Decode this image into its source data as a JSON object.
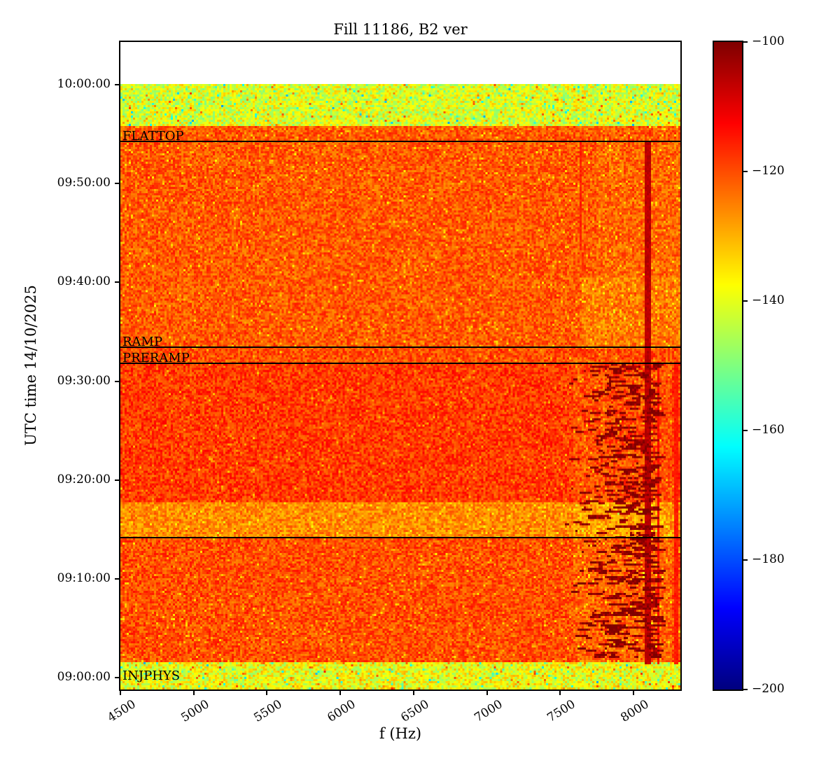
{
  "chart_data": {
    "type": "heatmap",
    "title": "Fill 11186, B2 ver",
    "x_axis": {
      "label": "f (Hz)",
      "min": 4500,
      "max": 8320,
      "ticks": [
        {
          "value": 4500,
          "label": "4500"
        },
        {
          "value": 5000,
          "label": "5000"
        },
        {
          "value": 5500,
          "label": "5500"
        },
        {
          "value": 6000,
          "label": "6000"
        },
        {
          "value": 6500,
          "label": "6500"
        },
        {
          "value": 7000,
          "label": "7000"
        },
        {
          "value": 7500,
          "label": "7500"
        },
        {
          "value": 8000,
          "label": "8000"
        }
      ]
    },
    "y_axis": {
      "label": "UTC time 14/10/2025",
      "reference_time": "09:00:00",
      "t_top_seconds": 3859,
      "t_bottom_seconds": -72,
      "ticks": [
        {
          "t": 3600,
          "label": "10:00:00"
        },
        {
          "t": 3000,
          "label": "09:50:00"
        },
        {
          "t": 2400,
          "label": "09:40:00"
        },
        {
          "t": 1800,
          "label": "09:30:00"
        },
        {
          "t": 1200,
          "label": "09:20:00"
        },
        {
          "t": 600,
          "label": "09:10:00"
        },
        {
          "t": 0,
          "label": "09:00:00"
        }
      ]
    },
    "colorbar": {
      "min": -200,
      "max": -100,
      "colormap": "jet",
      "ticks": [
        {
          "value": -100,
          "label": "−100"
        },
        {
          "value": -120,
          "label": "−120"
        },
        {
          "value": -140,
          "label": "−140"
        },
        {
          "value": -160,
          "label": "−160"
        },
        {
          "value": -180,
          "label": "−180"
        },
        {
          "value": -200,
          "label": "−200"
        }
      ]
    },
    "annotations": [
      {
        "label": "FLATTOP",
        "t_seconds": 3256,
        "line": true
      },
      {
        "label": "RAMP",
        "t_seconds": 2005,
        "line": true
      },
      {
        "label": "PRERAMP",
        "t_seconds": 1910,
        "line": true
      },
      {
        "label": "",
        "t_seconds": 850,
        "line": true
      },
      {
        "label": "INJPHYS",
        "t_seconds": -20,
        "line": false
      }
    ],
    "render": {
      "seed": 1337,
      "no_data_above_t": 3610,
      "bands": [
        {
          "name": "post-flattop-low-power",
          "t": [
            3350,
            3610
          ],
          "base": -141,
          "amp": 9,
          "specks": [
            {
              "prob": 0.03,
              "amp": -17
            },
            {
              "prob": 0.05,
              "amp": 11
            }
          ]
        },
        {
          "name": "flattop",
          "t": [
            2005,
            3350
          ],
          "base": -121,
          "amp": 6,
          "specks": [
            {
              "prob": 0.06,
              "amp": -8
            }
          ]
        },
        {
          "name": "ramp",
          "t": [
            1910,
            2005
          ],
          "base": -120,
          "amp": 6,
          "specks": [
            {
              "prob": 0.05,
              "amp": -8
            }
          ]
        },
        {
          "name": "preramp-upper",
          "t": [
            1060,
            1910
          ],
          "base": -118,
          "amp": 6,
          "specks": [
            {
              "prob": 0.05,
              "amp": -7
            }
          ]
        },
        {
          "name": "light-band",
          "t": [
            850,
            1060
          ],
          "base": -126,
          "amp": 6,
          "specks": [
            {
              "prob": 0.06,
              "amp": -7
            }
          ]
        },
        {
          "name": "injection",
          "t": [
            90,
            850
          ],
          "base": -120,
          "amp": 6,
          "specks": [
            {
              "prob": 0.06,
              "amp": -8
            }
          ]
        },
        {
          "name": "pre-beam-low-power",
          "t": [
            -72,
            90
          ],
          "base": -139,
          "amp": 9,
          "specks": [
            {
              "prob": 0.03,
              "amp": -17
            },
            {
              "prob": 0.05,
              "amp": 11
            }
          ]
        }
      ],
      "patches": [
        {
          "t": [
            2005,
            2420
          ],
          "f": [
            7650,
            8320
          ],
          "extra": -5
        },
        {
          "t": [
            2420,
            3256
          ],
          "f": [
            7750,
            8320
          ],
          "extra": -2
        },
        {
          "t": [
            90,
            1910
          ],
          "f": [
            7600,
            8250
          ],
          "extra": -3
        }
      ],
      "vertical_lines": [
        {
          "f": 8100,
          "t": [
            90,
            3256
          ],
          "value": -106,
          "width_hz": 22
        },
        {
          "f": 8170,
          "t": [
            90,
            1910
          ],
          "value": -113,
          "width_hz": 12
        },
        {
          "f": 8290,
          "t": [
            90,
            1910
          ],
          "value": -115,
          "width_hz": 12
        },
        {
          "f": 7640,
          "t": [
            2600,
            3256
          ],
          "value": -116,
          "width_hz": 10
        }
      ],
      "scribbles": {
        "t": [
          120,
          1905
        ],
        "f": [
          7520,
          8150
        ],
        "count": 650,
        "value": -101,
        "jitter": 5,
        "max_len_cells": 6
      }
    }
  }
}
